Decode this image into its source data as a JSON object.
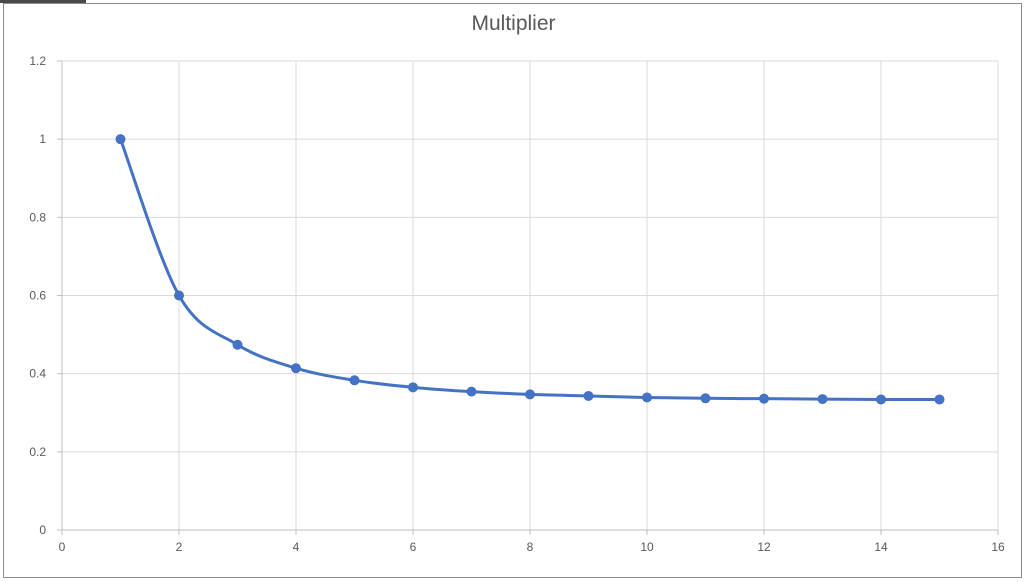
{
  "chart_data": {
    "type": "scatter",
    "title": "Multiplier",
    "xlabel": "",
    "ylabel": "",
    "xlim": [
      0,
      16
    ],
    "ylim": [
      0,
      1.2
    ],
    "x_ticks": [
      "0",
      "2",
      "4",
      "6",
      "8",
      "10",
      "12",
      "14",
      "16"
    ],
    "y_ticks": [
      "0",
      "0.2",
      "0.4",
      "0.6",
      "0.8",
      "1",
      "1.2"
    ],
    "grid": true,
    "legend": "none",
    "line_style": "smoothed line with markers",
    "series": [
      {
        "x": [
          1,
          2,
          3,
          4,
          5,
          6,
          7,
          8,
          9,
          10,
          11,
          12,
          13,
          14,
          15
        ],
        "values": [
          1.0,
          0.6,
          0.474,
          0.414,
          0.383,
          0.365,
          0.354,
          0.347,
          0.343,
          0.339,
          0.337,
          0.336,
          0.335,
          0.334,
          0.334
        ],
        "color": "#4472c4"
      }
    ]
  }
}
